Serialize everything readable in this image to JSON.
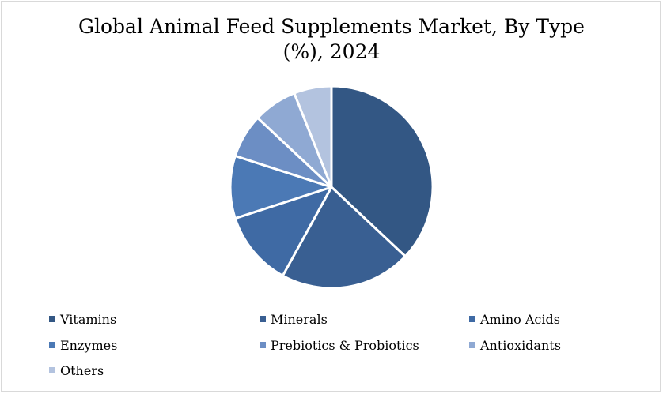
{
  "chart_data": {
    "type": "pie",
    "title_lines": [
      "Global Animal Feed Supplements Market, By Type",
      "(%), 2024"
    ],
    "title": "Global Animal Feed Supplements Market, By Type (%), 2024",
    "categories": [
      "Vitamins",
      "Minerals",
      "Amino Acids",
      "Enzymes",
      "Prebiotics & Probiotics",
      "Antioxidants",
      "Others"
    ],
    "values": [
      37,
      21,
      12,
      10,
      7,
      7,
      6
    ],
    "colors": [
      "#335784",
      "#395f92",
      "#3f6aa4",
      "#4b79b5",
      "#6c8ec4",
      "#8fa9d3",
      "#b3c3df"
    ],
    "start_angle_deg": 0,
    "direction": "clockwise",
    "legend_position": "bottom"
  }
}
